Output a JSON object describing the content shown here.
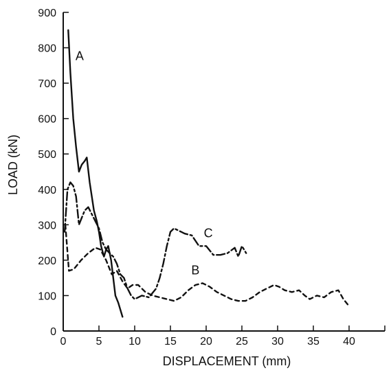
{
  "chart_data": {
    "type": "line",
    "title": "",
    "xlabel": "DISPLACEMENT (mm)",
    "ylabel": "LOAD (kN)",
    "xlim": [
      0,
      45
    ],
    "ylim": [
      0,
      900
    ],
    "x_ticks": [
      0,
      5,
      10,
      15,
      20,
      25,
      30,
      35,
      40
    ],
    "x_tick_labels": [
      "0",
      "5",
      "10",
      "15",
      "20",
      "25",
      "30",
      "35",
      "40"
    ],
    "y_ticks": [
      0,
      100,
      200,
      300,
      400,
      500,
      600,
      700,
      800,
      900
    ],
    "y_tick_labels": [
      "0",
      "100",
      "200",
      "300",
      "400",
      "500",
      "600",
      "700",
      "800",
      "900"
    ],
    "grid": false,
    "legend": "none",
    "series": [
      {
        "name": "A",
        "line_style": "solid",
        "color": "#111111",
        "x": [
          0.7,
          1.0,
          1.4,
          1.8,
          2.2,
          2.6,
          3.0,
          3.3,
          3.7,
          4.0,
          4.3,
          4.7,
          5.0,
          5.3,
          5.7,
          6.0,
          6.3,
          6.7,
          7.0,
          7.3,
          7.7,
          8.0,
          8.3
        ],
        "values": [
          850,
          730,
          600,
          520,
          450,
          470,
          480,
          490,
          420,
          380,
          340,
          310,
          280,
          240,
          210,
          230,
          240,
          200,
          150,
          100,
          80,
          60,
          40
        ]
      },
      {
        "name": "B",
        "line_style": "dashed",
        "color": "#111111",
        "x": [
          0.3,
          0.8,
          1.5,
          2.5,
          3.5,
          4.5,
          5.2,
          6.0,
          6.8,
          7.5,
          8.3,
          9.0,
          9.7,
          10.5,
          11.5,
          12.5,
          13.5,
          14.5,
          15.5,
          16.5,
          17.5,
          18.5,
          19.5,
          20.5,
          21.5,
          22.5,
          23.5,
          24.5,
          25.5,
          26.5,
          27.5,
          28.5,
          29.5,
          30.2,
          31.0,
          32.0,
          33.0,
          33.8,
          34.5,
          35.5,
          36.5,
          37.5,
          38.5,
          39.2,
          39.8
        ],
        "values": [
          300,
          170,
          175,
          200,
          220,
          235,
          230,
          200,
          160,
          170,
          140,
          120,
          130,
          130,
          110,
          100,
          95,
          90,
          85,
          95,
          115,
          130,
          135,
          125,
          110,
          100,
          90,
          85,
          85,
          95,
          110,
          120,
          130,
          125,
          115,
          110,
          115,
          100,
          90,
          100,
          95,
          110,
          115,
          90,
          75
        ]
      },
      {
        "name": "C",
        "line_style": "dash-dot",
        "color": "#111111",
        "x": [
          0.2,
          0.6,
          1.0,
          1.4,
          1.8,
          2.2,
          2.6,
          3.0,
          3.5,
          4.0,
          4.5,
          5.0,
          5.5,
          6.0,
          6.5,
          7.0,
          7.5,
          8.0,
          8.5,
          9.0,
          9.5,
          10.0,
          11.0,
          12.0,
          13.0,
          13.5,
          14.0,
          14.5,
          15.0,
          15.5,
          16.0,
          16.5,
          17.0,
          18.0,
          19.0,
          20.0,
          21.0,
          22.0,
          23.0,
          24.0,
          24.5,
          25.0,
          25.3,
          25.6
        ],
        "values": [
          280,
          400,
          420,
          410,
          380,
          300,
          320,
          340,
          350,
          330,
          310,
          290,
          250,
          230,
          220,
          210,
          190,
          160,
          150,
          120,
          100,
          90,
          100,
          95,
          120,
          150,
          190,
          240,
          280,
          290,
          285,
          280,
          275,
          270,
          240,
          240,
          215,
          215,
          220,
          235,
          210,
          240,
          230,
          220
        ]
      }
    ],
    "annotations": [
      {
        "text": "A",
        "x": 2.3,
        "y": 765
      },
      {
        "text": "B",
        "x": 18.5,
        "y": 160
      },
      {
        "text": "C",
        "x": 20.3,
        "y": 265
      }
    ]
  }
}
